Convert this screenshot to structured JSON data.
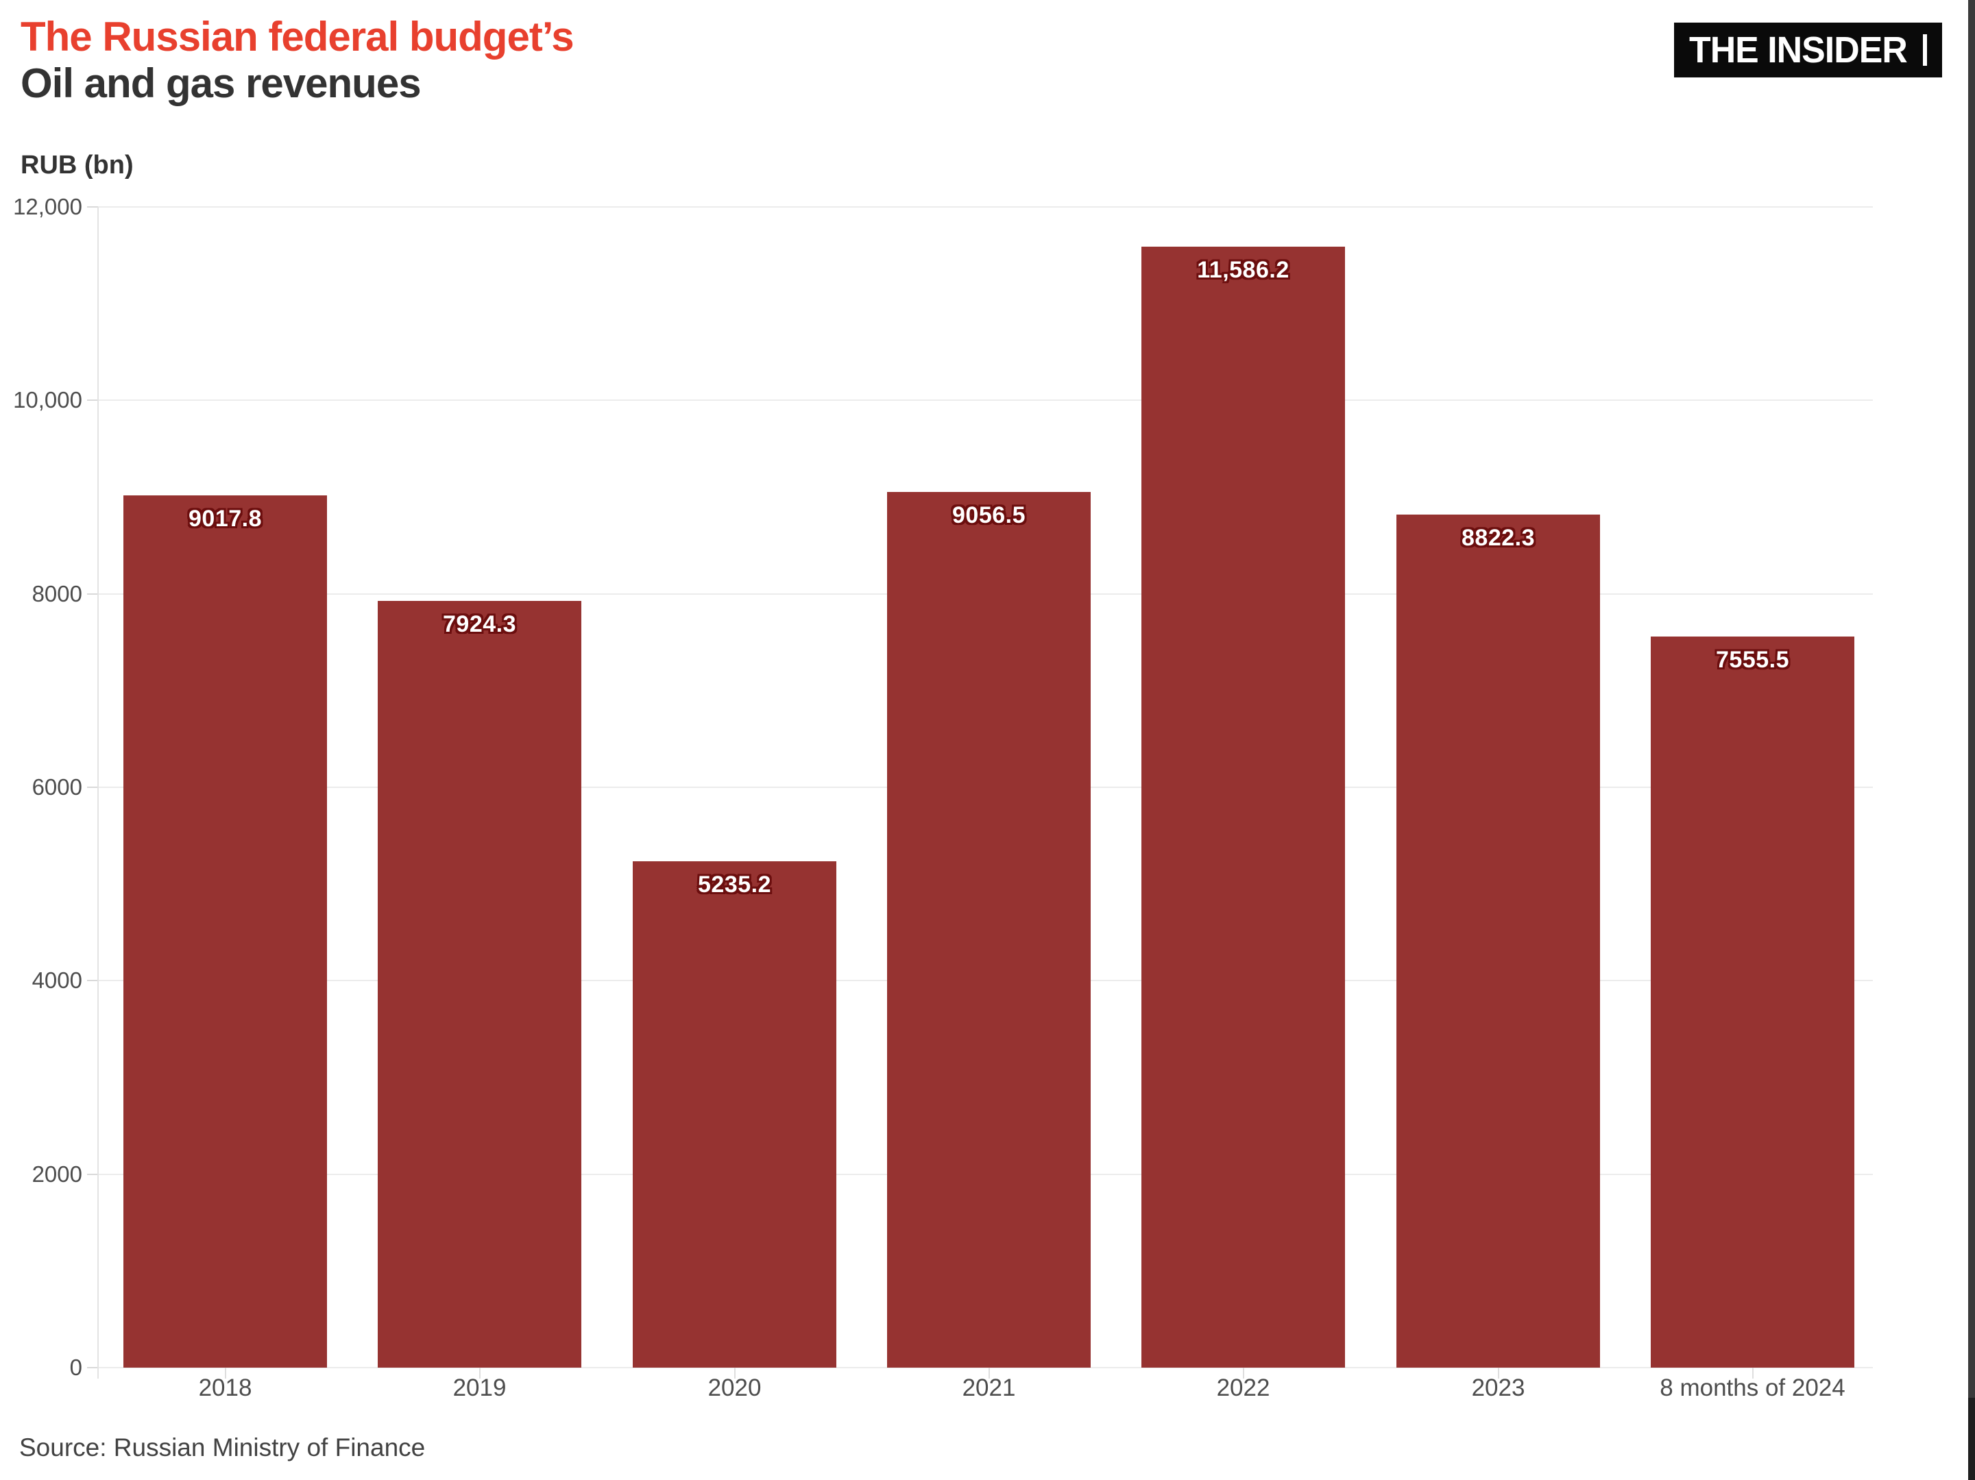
{
  "header": {
    "logo_text": "THE INSIDER"
  },
  "chart_data": {
    "type": "bar",
    "title": "The Russian federal budget's Oil and gas revenues",
    "title_line1": "The Russian federal budget’s",
    "title_line2": "Oil and gas revenues",
    "ylabel": "RUB (bn)",
    "xlabel": "",
    "categories": [
      "2018",
      "2019",
      "2020",
      "2021",
      "2022",
      "2023",
      "8 months of 2024"
    ],
    "values": [
      9017.8,
      7924.3,
      5235.2,
      9056.5,
      11586.2,
      8822.3,
      7555.5
    ],
    "value_labels": [
      "9017.8",
      "7924.3",
      "5235.2",
      "9056.5",
      "11,586.2",
      "8822.3",
      "7555.5"
    ],
    "ylim": [
      0,
      12000
    ],
    "yticks": [
      0,
      2000,
      4000,
      6000,
      8000,
      10000,
      12000
    ],
    "ytick_labels": [
      "0",
      "2000",
      "4000",
      "6000",
      "8000",
      "10,000",
      "12,000"
    ],
    "grid": true,
    "legend": "none",
    "bar_color": "#963331",
    "bar_label_color": "#ffffff",
    "bar_label_outline": "#6b0e0e"
  },
  "footer": {
    "source": "Source: Russian Ministry of Finance"
  },
  "colors": {
    "accent_red": "#e8402e",
    "title_dark": "#333333",
    "axis_text": "#4d4d4d",
    "gridline": "#ececec",
    "scrollbar_track": "#3a3a3a",
    "scrollbar_thumb": "#1e1e1e"
  }
}
